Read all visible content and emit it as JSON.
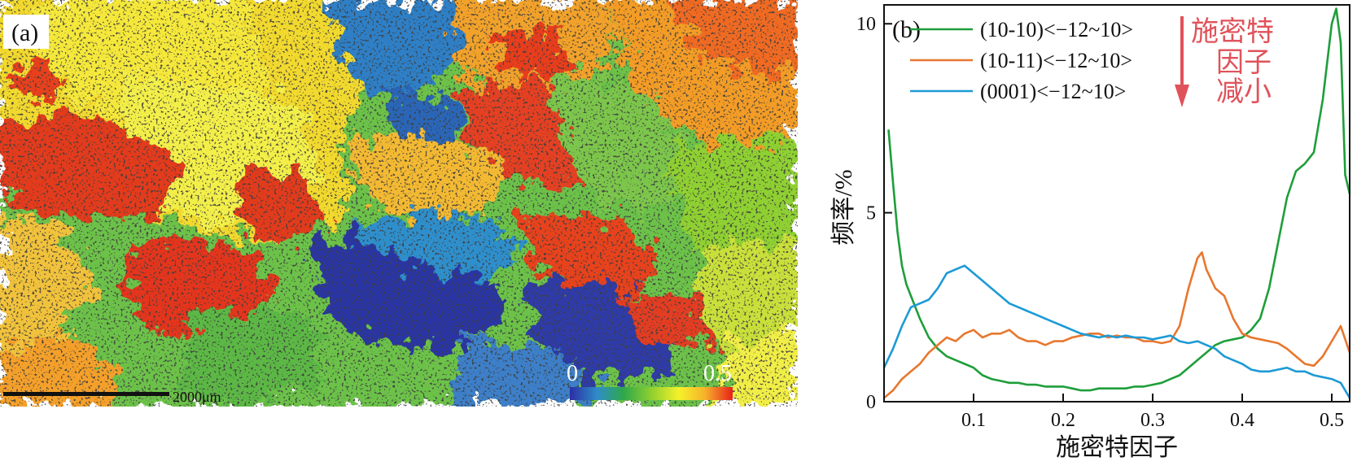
{
  "panel_a": {
    "label": "(a)",
    "scale_bar_text": "2000μm",
    "colorbar": {
      "min_label": "0",
      "max_label": "0.5",
      "stops": [
        "#2c2fa6",
        "#2f8cc8",
        "#2ea84a",
        "#8fd030",
        "#f4f22a",
        "#f7b22a",
        "#e8201c"
      ]
    }
  },
  "chart_data": {
    "type": "line",
    "panel_label": "(b)",
    "xlabel": "施密特因子",
    "ylabel": "频率/%",
    "xlim": [
      0,
      0.52
    ],
    "ylim": [
      0,
      10.5
    ],
    "xticks": [
      0.1,
      0.2,
      0.3,
      0.4,
      0.5
    ],
    "xtick_labels": [
      "0.1",
      "0.2",
      "0.3",
      "0.4",
      "0.5"
    ],
    "yticks": [
      0,
      5,
      10
    ],
    "ytick_labels": [
      "0",
      "5",
      "10"
    ],
    "annotation": {
      "lines": [
        "施密特",
        "因子",
        "减小"
      ],
      "color": "#e0525a"
    },
    "series": [
      {
        "name": "(10-10)<−12~10>",
        "color": "#1e9e3a",
        "x": [
          0.005,
          0.01,
          0.015,
          0.02,
          0.025,
          0.03,
          0.04,
          0.05,
          0.06,
          0.07,
          0.08,
          0.09,
          0.1,
          0.11,
          0.12,
          0.13,
          0.14,
          0.15,
          0.16,
          0.17,
          0.18,
          0.19,
          0.2,
          0.21,
          0.22,
          0.23,
          0.24,
          0.25,
          0.26,
          0.27,
          0.28,
          0.29,
          0.3,
          0.31,
          0.32,
          0.33,
          0.34,
          0.35,
          0.36,
          0.37,
          0.38,
          0.39,
          0.4,
          0.41,
          0.42,
          0.43,
          0.44,
          0.45,
          0.46,
          0.47,
          0.48,
          0.49,
          0.5,
          0.505,
          0.51,
          0.515,
          0.52
        ],
        "values": [
          7.2,
          5.8,
          4.5,
          3.6,
          3.1,
          2.8,
          2.2,
          1.7,
          1.4,
          1.2,
          1.1,
          1.0,
          0.9,
          0.7,
          0.6,
          0.55,
          0.5,
          0.5,
          0.45,
          0.45,
          0.4,
          0.4,
          0.4,
          0.35,
          0.3,
          0.3,
          0.35,
          0.35,
          0.35,
          0.35,
          0.4,
          0.4,
          0.45,
          0.5,
          0.6,
          0.7,
          0.9,
          1.1,
          1.3,
          1.5,
          1.6,
          1.65,
          1.7,
          1.9,
          2.2,
          3.0,
          4.2,
          5.4,
          6.1,
          6.3,
          6.6,
          8.0,
          10.0,
          10.4,
          9.5,
          6.0,
          5.5
        ]
      },
      {
        "name": "(10-11)<−12~10>",
        "color": "#e8772e",
        "x": [
          0.0,
          0.01,
          0.02,
          0.03,
          0.04,
          0.05,
          0.06,
          0.07,
          0.08,
          0.09,
          0.1,
          0.11,
          0.12,
          0.13,
          0.14,
          0.15,
          0.16,
          0.17,
          0.18,
          0.19,
          0.2,
          0.21,
          0.22,
          0.23,
          0.24,
          0.25,
          0.26,
          0.27,
          0.28,
          0.29,
          0.3,
          0.31,
          0.32,
          0.33,
          0.34,
          0.35,
          0.355,
          0.36,
          0.37,
          0.38,
          0.39,
          0.4,
          0.41,
          0.42,
          0.43,
          0.44,
          0.45,
          0.46,
          0.47,
          0.48,
          0.49,
          0.5,
          0.51,
          0.52
        ],
        "values": [
          0.1,
          0.3,
          0.6,
          0.8,
          1.0,
          1.3,
          1.5,
          1.7,
          1.6,
          1.8,
          1.9,
          1.7,
          1.8,
          1.8,
          1.9,
          1.7,
          1.6,
          1.6,
          1.5,
          1.6,
          1.6,
          1.7,
          1.75,
          1.8,
          1.8,
          1.7,
          1.75,
          1.7,
          1.7,
          1.6,
          1.6,
          1.55,
          1.6,
          2.0,
          3.0,
          3.8,
          3.95,
          3.5,
          3.0,
          2.8,
          2.2,
          1.8,
          1.7,
          1.65,
          1.6,
          1.55,
          1.4,
          1.2,
          1.0,
          0.95,
          1.2,
          1.6,
          2.0,
          1.3
        ]
      },
      {
        "name": "(0001)<−12~10>",
        "color": "#1d9ad6",
        "x": [
          0.0,
          0.01,
          0.02,
          0.03,
          0.04,
          0.05,
          0.06,
          0.07,
          0.08,
          0.09,
          0.1,
          0.11,
          0.12,
          0.13,
          0.14,
          0.15,
          0.16,
          0.17,
          0.18,
          0.19,
          0.2,
          0.21,
          0.22,
          0.23,
          0.24,
          0.25,
          0.26,
          0.27,
          0.28,
          0.29,
          0.3,
          0.31,
          0.32,
          0.33,
          0.34,
          0.35,
          0.36,
          0.37,
          0.38,
          0.39,
          0.4,
          0.41,
          0.42,
          0.43,
          0.44,
          0.45,
          0.46,
          0.47,
          0.48,
          0.49,
          0.5,
          0.51,
          0.52
        ],
        "values": [
          0.9,
          1.4,
          2.0,
          2.5,
          2.6,
          2.7,
          3.0,
          3.4,
          3.5,
          3.6,
          3.4,
          3.2,
          3.0,
          2.8,
          2.6,
          2.5,
          2.4,
          2.3,
          2.2,
          2.1,
          2.0,
          1.9,
          1.8,
          1.75,
          1.7,
          1.75,
          1.7,
          1.75,
          1.7,
          1.7,
          1.65,
          1.7,
          1.75,
          1.6,
          1.55,
          1.6,
          1.5,
          1.4,
          1.2,
          1.1,
          1.0,
          0.85,
          0.8,
          0.8,
          0.85,
          0.9,
          0.8,
          0.8,
          0.7,
          0.65,
          0.6,
          0.5,
          0.1
        ]
      }
    ]
  }
}
